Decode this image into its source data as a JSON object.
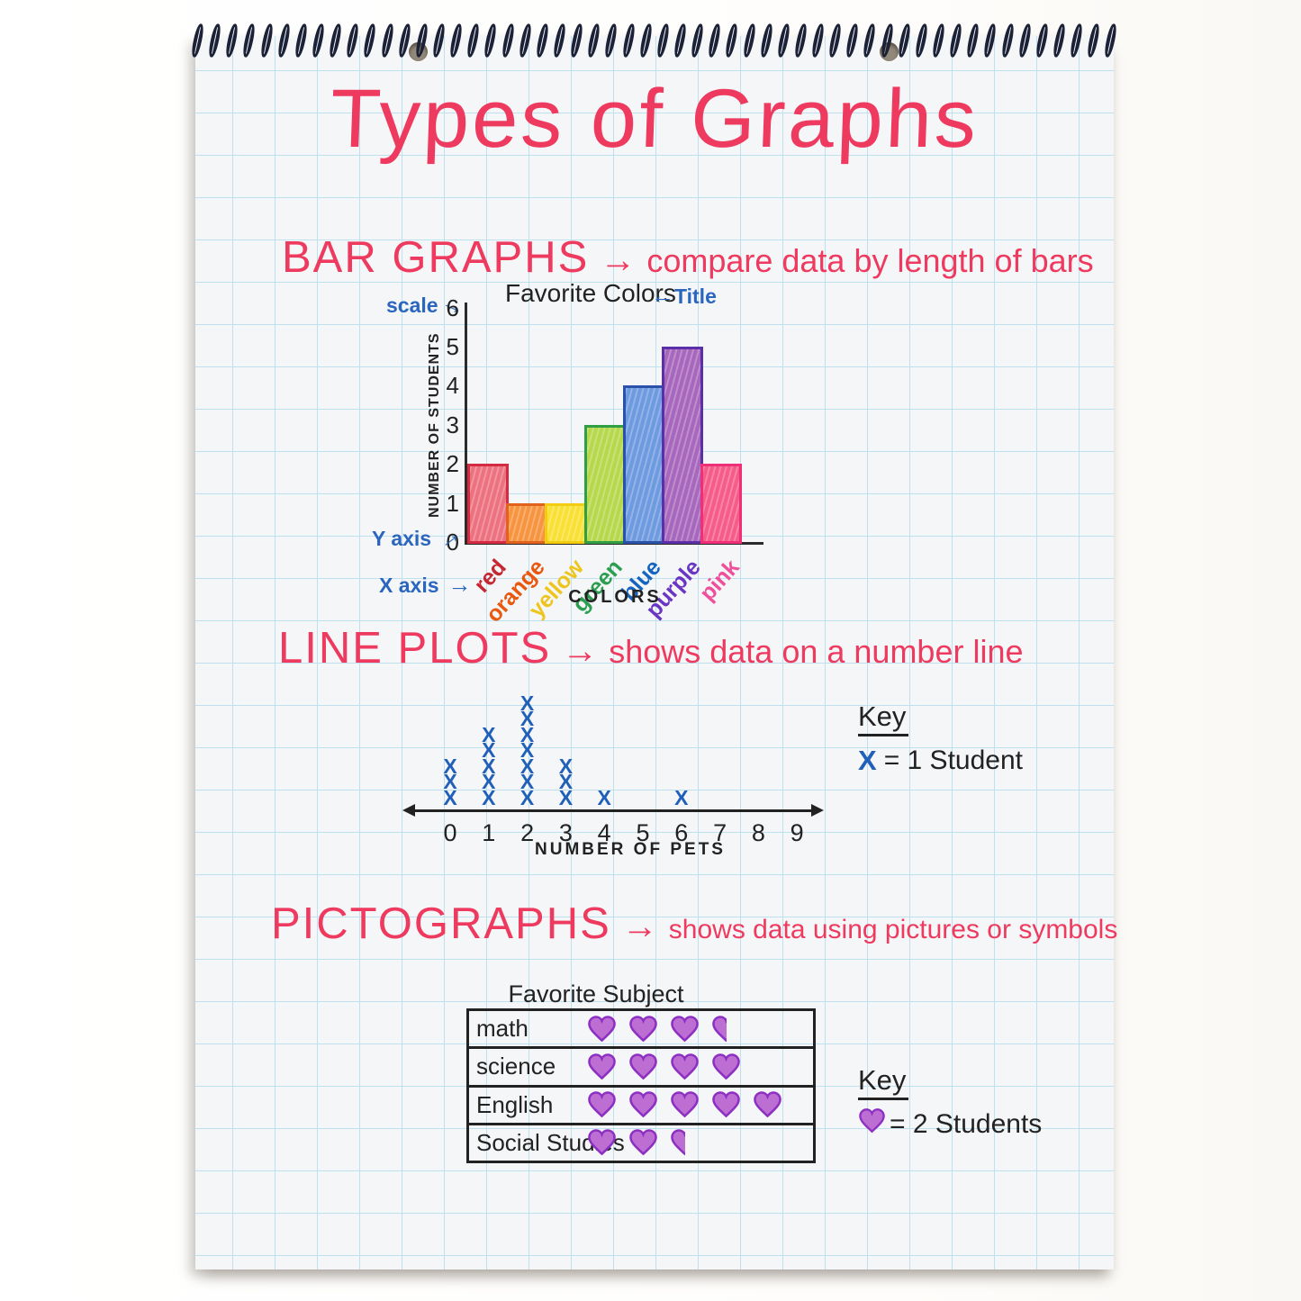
{
  "page_title": "Types of Graphs",
  "sections": {
    "bar_graphs": {
      "heading": "BAR GRAPHS",
      "arrow": "→",
      "description": "compare data by length of bars"
    },
    "line_plots": {
      "heading": "LINE PLOTS",
      "arrow": "→",
      "description": "shows data on a number line"
    },
    "pictographs": {
      "heading": "PICTOGRAPHS",
      "arrow": "→",
      "description": "shows data using pictures or symbols"
    }
  },
  "chart_data": [
    {
      "type": "bar",
      "title": "Favorite Colors",
      "xlabel": "COLORS",
      "ylabel": "NUMBER OF STUDENTS",
      "ylim": [
        0,
        6
      ],
      "yticks": [
        0,
        1,
        2,
        3,
        4,
        5,
        6
      ],
      "categories": [
        "red",
        "orange",
        "yellow",
        "green",
        "blue",
        "purple",
        "pink"
      ],
      "values": [
        2,
        1,
        1,
        3,
        4,
        5,
        2
      ],
      "bar_fills": [
        "#ed7280",
        "#f69440",
        "#f9e035",
        "#b6d84d",
        "#6e9ae0",
        "#a767bd",
        "#f55c88"
      ],
      "bar_strokes": [
        "#d42a42",
        "#e2611d",
        "#f3cb0f",
        "#2f9e44",
        "#2b52ab",
        "#5a2fa8",
        "#ef2f77"
      ],
      "label_colors": [
        "#c62832",
        "#e8590f",
        "#eec51d",
        "#2b9e4f",
        "#1565c0",
        "#6a35c2",
        "#ef4f9b"
      ],
      "annotations": {
        "scale": "scale",
        "title": "Title",
        "y_axis": "Y axis",
        "x_axis": "X axis",
        "arrow_right": "→",
        "arrow_left": "←"
      }
    },
    {
      "type": "line_plot",
      "xlabel": "NUMBER OF PETS",
      "x": [
        0,
        1,
        2,
        3,
        4,
        5,
        6,
        7,
        8,
        9
      ],
      "counts": [
        3,
        5,
        7,
        3,
        1,
        0,
        1,
        0,
        0,
        0
      ],
      "symbol": "X",
      "symbol_color": "#2160b8",
      "key": {
        "heading": "Key",
        "symbol": "X",
        "text": "= 1 Student"
      }
    },
    {
      "type": "pictograph",
      "title": "Favorite Subject",
      "symbol": "heart",
      "symbol_value": 2,
      "rows": [
        {
          "label": "math",
          "value": 3.5
        },
        {
          "label": "science",
          "value": 4
        },
        {
          "label": "English",
          "value": 5
        },
        {
          "label": "Social Studies",
          "value": 2.5
        }
      ],
      "key": {
        "heading": "Key",
        "text": "= 2 Students"
      },
      "heart_fill": "#bd6ed3",
      "heart_stroke": "#8d2fc2"
    }
  ],
  "colors": {
    "marker_red": "#ee3a5f",
    "marker_blue": "#2a66bd",
    "marker_black": "#2b2b2b",
    "grid_line": "#bfe0ef",
    "paper": "#f5f6f8",
    "spiral": "#1b2136"
  }
}
